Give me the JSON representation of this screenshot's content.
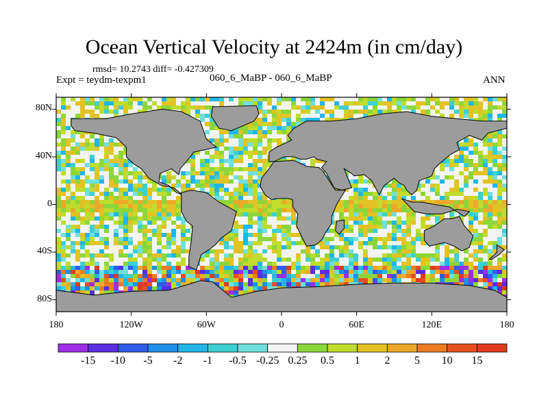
{
  "title": "Ocean Vertical Velocity at 2424m (in cm/day)",
  "stats": "rmsd= 10.2743 diff= -0.427309",
  "experiment": "Expt = teydm-texpm1",
  "case": "060_6_MaBP - 060_6_MaBP",
  "season": "ANN",
  "chart_data": {
    "type": "heatmap",
    "title": "Ocean Vertical Velocity at 2424m (in cm/day)",
    "xlim": [
      -180,
      180
    ],
    "ylim": [
      -90,
      90
    ],
    "x_ticks": [
      {
        "value": -180,
        "label": "180"
      },
      {
        "value": -120,
        "label": "120W"
      },
      {
        "value": -60,
        "label": "60W"
      },
      {
        "value": 0,
        "label": "0"
      },
      {
        "value": 60,
        "label": "60E"
      },
      {
        "value": 120,
        "label": "120E"
      },
      {
        "value": 180,
        "label": "180"
      }
    ],
    "y_ticks": [
      {
        "value": 80,
        "label": "80N"
      },
      {
        "value": 40,
        "label": "40N"
      },
      {
        "value": 0,
        "label": "0"
      },
      {
        "value": -40,
        "label": "40S"
      },
      {
        "value": -80,
        "label": "80S"
      }
    ],
    "colorbar": {
      "levels": [
        "-15",
        "-10",
        "-5",
        "-2",
        "-1",
        "-0.5",
        "-0.25",
        "0.25",
        "0.5",
        "1",
        "2",
        "5",
        "10",
        "15"
      ],
      "colors": [
        "#9d2ee6",
        "#5a2de0",
        "#2f5ce8",
        "#1f8fe8",
        "#22b6e6",
        "#3dd0d2",
        "#70e0dc",
        "#f4f4f4",
        "#8cd63a",
        "#c0dc2c",
        "#e2c224",
        "#eda82a",
        "#ec7c22",
        "#e65020",
        "#e03a1c"
      ]
    },
    "land_color": "#9c9c9c"
  }
}
